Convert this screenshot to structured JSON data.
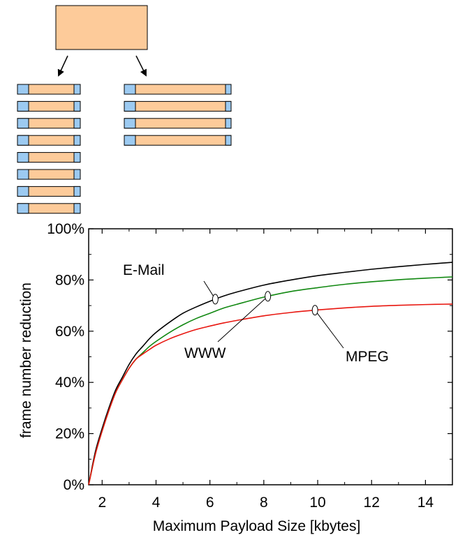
{
  "diagram": {
    "colors": {
      "payload": "#FDCB9A",
      "header": "#9CCAF1",
      "stroke": "#000000"
    },
    "left_stack_frames": 8,
    "right_stack_frames": 4
  },
  "chart_data": {
    "type": "line",
    "xlabel": "Maximum Payload Size [kbytes]",
    "ylabel": "frame number reduction",
    "xlim": [
      1.5,
      15
    ],
    "ylim": [
      0,
      100
    ],
    "xticks": [
      2,
      4,
      6,
      8,
      10,
      12,
      14
    ],
    "yticks": [
      0,
      20,
      40,
      60,
      80,
      100
    ],
    "ytick_labels": [
      "0%",
      "20%",
      "40%",
      "60%",
      "80%",
      "100%"
    ],
    "grid": false,
    "series": [
      {
        "name": "E-Mail",
        "color": "#000000",
        "x": [
          1.5,
          1.75,
          2,
          2.25,
          2.5,
          2.75,
          3,
          3.25,
          3.5,
          3.75,
          4,
          4.5,
          5,
          5.5,
          6,
          6.5,
          7,
          8,
          9,
          10,
          11,
          12,
          13,
          14,
          15
        ],
        "y": [
          0,
          13,
          22,
          30,
          37,
          42,
          47,
          51,
          54,
          57,
          59.5,
          63.5,
          67,
          69.5,
          71.7,
          73.7,
          75.3,
          78,
          80,
          81.7,
          83,
          84.2,
          85.2,
          86.1,
          86.9
        ]
      },
      {
        "name": "WWW",
        "color": "#118811",
        "x": [
          1.5,
          1.75,
          2,
          2.25,
          2.5,
          2.75,
          3,
          3.25,
          3.5,
          3.75,
          4,
          4.5,
          5,
          5.5,
          6,
          6.5,
          7,
          8,
          9,
          10,
          11,
          12,
          13,
          14,
          15
        ],
        "y": [
          0,
          12,
          21,
          29,
          36,
          41,
          45.5,
          49,
          51.5,
          54,
          56,
          59.5,
          62.5,
          65,
          67,
          69,
          70.5,
          73.3,
          75.5,
          77,
          78.3,
          79.3,
          80.1,
          80.7,
          81.2
        ]
      },
      {
        "name": "MPEG",
        "color": "#E8160F",
        "x": [
          1.5,
          1.75,
          2,
          2.25,
          2.5,
          2.75,
          3,
          3.25,
          3.5,
          3.75,
          4,
          4.5,
          5,
          5.5,
          6,
          6.5,
          7,
          8,
          9,
          10,
          11,
          12,
          13,
          14,
          15
        ],
        "y": [
          0,
          12,
          21,
          29,
          36,
          41,
          45.5,
          49,
          51,
          52.8,
          54.5,
          57,
          59,
          60.7,
          62,
          63.2,
          64.2,
          66,
          67.3,
          68.3,
          69.1,
          69.7,
          70.1,
          70.4,
          70.6
        ]
      }
    ],
    "annotations": [
      {
        "text": "E-Mail",
        "series": 0,
        "marker_x": 6.2
      },
      {
        "text": "WWW",
        "series": 1,
        "marker_x": 8.15
      },
      {
        "text": "MPEG",
        "series": 2,
        "marker_x": 9.9
      }
    ]
  }
}
